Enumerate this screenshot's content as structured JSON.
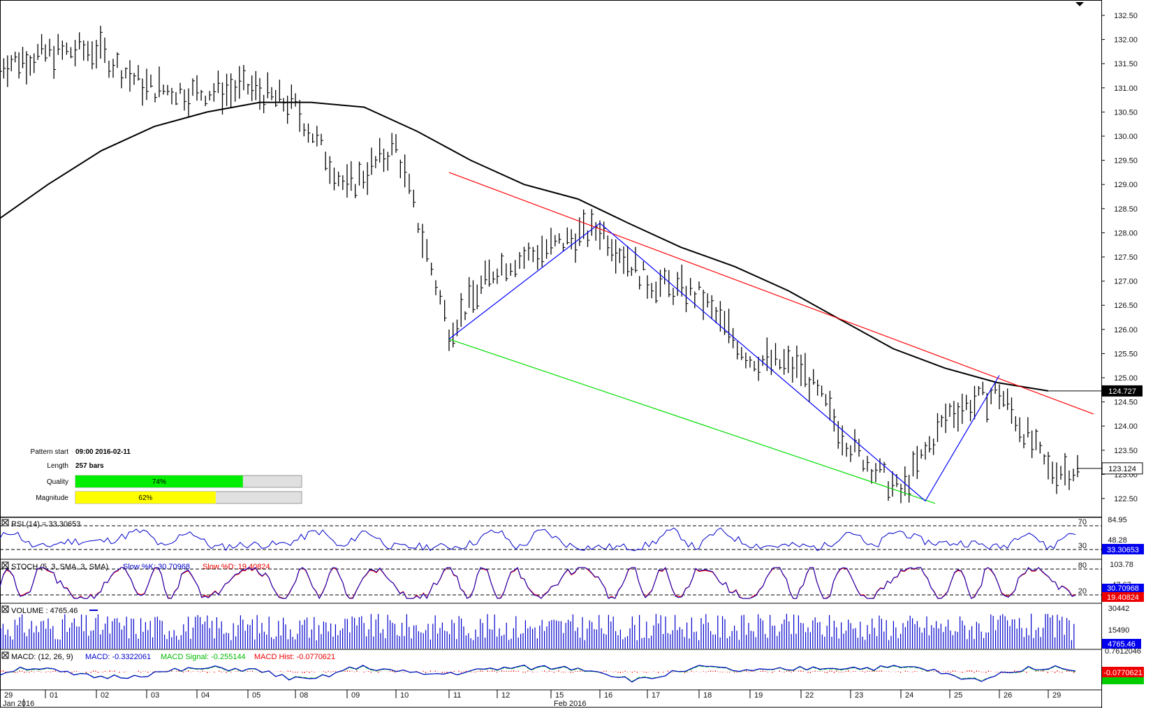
{
  "chart_data": {
    "type": "line",
    "instrument_unit": "price",
    "price_axis": {
      "ticks": [
        "132.50",
        "132.00",
        "131.50",
        "131.00",
        "130.50",
        "130.00",
        "129.50",
        "129.00",
        "128.50",
        "128.00",
        "127.50",
        "127.00",
        "126.50",
        "126.00",
        "125.50",
        "125.00",
        "124.50",
        "124.00",
        "123.50",
        "123.00",
        "122.50"
      ],
      "range": [
        122.2,
        132.75
      ]
    },
    "x_axis": {
      "day_labels": [
        "29",
        "01",
        "02",
        "03",
        "04",
        "05",
        "08",
        "09",
        "10",
        "11",
        "12",
        "15",
        "16",
        "17",
        "18",
        "19",
        "22",
        "23",
        "24",
        "25",
        "26",
        "29"
      ],
      "month_labels": [
        "Jan 2016",
        "Feb 2016"
      ]
    },
    "price_boxes": {
      "moving_average": "124.727",
      "last_price": "123.124"
    },
    "price_series_anchors": {
      "description_days": [
        "29",
        "01",
        "02",
        "03",
        "04",
        "05",
        "08",
        "09",
        "10",
        "11",
        "12",
        "15",
        "16",
        "17",
        "18",
        "19",
        "22",
        "23",
        "24",
        "25",
        "26",
        "29"
      ],
      "values": [
        131.5,
        131.7,
        131.8,
        131.0,
        130.9,
        131.0,
        130.6,
        128.9,
        129.8,
        126.0,
        127.3,
        127.7,
        128.1,
        127.0,
        126.7,
        125.4,
        125.2,
        123.6,
        122.6,
        124.3,
        124.7,
        123.1
      ]
    },
    "moving_average_anchors": {
      "values": [
        128.3,
        129.0,
        129.7,
        130.2,
        130.5,
        130.7,
        130.7,
        130.6,
        130.1,
        129.5,
        129.0,
        128.7,
        128.2,
        127.7,
        127.3,
        126.8,
        126.2,
        125.6,
        125.2,
        124.9,
        124.727
      ]
    },
    "pattern": {
      "upper_line": [
        [
          11,
          129.25
        ],
        [
          29.9,
          124.25
        ]
      ],
      "lower_line": [
        [
          11,
          125.8
        ],
        [
          24.7,
          122.4
        ]
      ],
      "zigzag": [
        [
          11,
          125.8
        ],
        [
          16,
          128.2
        ],
        [
          24.5,
          122.45
        ],
        [
          26,
          125.05
        ]
      ]
    },
    "info_panel": {
      "pattern_start_label": "Pattern start",
      "pattern_start_value": "09:00 2016-02-11",
      "length_label": "Length",
      "length_value": "257 bars",
      "quality_label": "Quality",
      "quality_value": 74,
      "quality_text": "74%",
      "magnitude_label": "Magnitude",
      "magnitude_value": 62,
      "magnitude_text": "62%"
    },
    "indicators": {
      "rsi": {
        "label": "RSI (14) = 33.30653",
        "levels": [
          "70",
          "30"
        ],
        "axis_ticks": [
          "84.95",
          "48.28"
        ],
        "last_value": "33.30653"
      },
      "stoch": {
        "label_prefix": "STOCH (5, 3, SMA, 3, SMA)",
        "slow_k_label": "Slow %K: 30.70968",
        "slow_d_label": "Slow %D: 19.40824",
        "levels": [
          "80",
          "20"
        ],
        "axis_ticks": [
          "103.78",
          "47.67"
        ],
        "last_k": "30.70968",
        "last_d": "19.40824"
      },
      "volume": {
        "label": "VOLUME : 4765.46",
        "axis_ticks": [
          "30442",
          "15490"
        ],
        "last_value": "4765.46"
      },
      "macd": {
        "label_prefix": "MACD: (12, 26, 9)",
        "macd_label": "MACD: -0.3322061",
        "signal_label": "MACD Signal: -0.255144",
        "hist_label": "MACD Hist: -0.0770621",
        "axis_ticks": [
          "0.7612046"
        ],
        "last_hist": "-0.0770621",
        "last_macd": "-0.3322061"
      }
    },
    "colors": {
      "ma": "#000000",
      "upper_line": "#ff0000",
      "lower_line": "#00dd00",
      "zigzag": "#0000ff",
      "quality": "#00ee00",
      "magnitude": "#ffff00",
      "rsi": "#0000cc",
      "stoch_k": "#0000cc",
      "stoch_d": "#ee0000",
      "volume": "#0000cc",
      "macd": "#0000cc",
      "signal": "#00cc00",
      "hist": "#ee0000"
    }
  }
}
